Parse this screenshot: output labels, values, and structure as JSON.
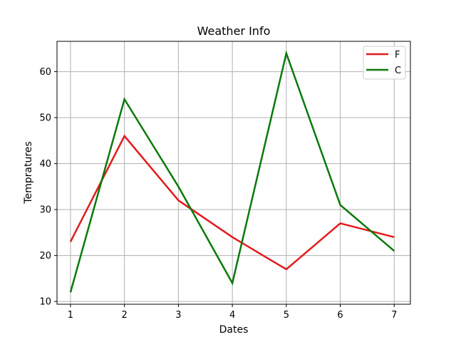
{
  "chart_data": {
    "type": "line",
    "title": "Weather Info",
    "xlabel": "Dates",
    "ylabel": "Tempratures",
    "x": [
      1,
      2,
      3,
      4,
      5,
      6,
      7
    ],
    "xlim": [
      0.75,
      7.3
    ],
    "ylim": [
      9.4,
      66.6
    ],
    "xticks": [
      1,
      2,
      3,
      4,
      5,
      6,
      7
    ],
    "yticks": [
      10,
      20,
      30,
      40,
      50,
      60
    ],
    "grid": true,
    "legend_position": "top-right",
    "series": [
      {
        "name": "F",
        "color": "#e31a1c",
        "values": [
          23,
          46,
          32,
          24,
          17,
          27,
          24
        ]
      },
      {
        "name": "C",
        "color": "#0a7a0a",
        "values": [
          12,
          54,
          35,
          14,
          64,
          31,
          21
        ]
      }
    ]
  }
}
